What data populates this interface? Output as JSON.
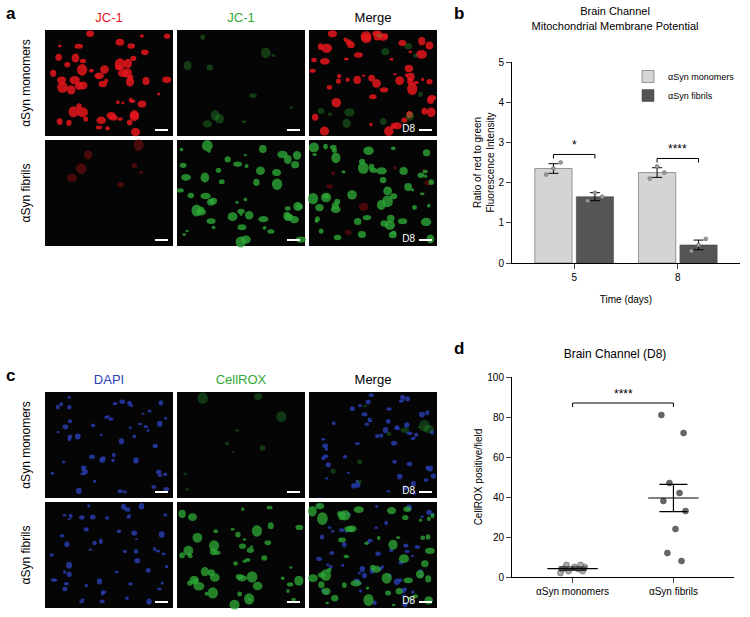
{
  "panels": [
    {
      "label": "a",
      "type": "image_grid",
      "columns": [
        {
          "text": "JC-1",
          "color": "#e4161c"
        },
        {
          "text": "JC-1",
          "color": "#2ea836"
        },
        {
          "text": "Merge",
          "color": "#000000"
        }
      ],
      "rows": [
        "αSyn monomers",
        "αSyn fibrils"
      ],
      "tag": "D8"
    },
    {
      "label": "c",
      "type": "image_grid",
      "columns": [
        {
          "text": "DAPI",
          "color": "#2a3fb8"
        },
        {
          "text": "CellROX",
          "color": "#2ea836"
        },
        {
          "text": "Merge",
          "color": "#000000"
        }
      ],
      "rows": [
        "αSyn monomers",
        "αSyn fibrils"
      ],
      "tag": "D8"
    }
  ],
  "chart_data": [
    {
      "label": "b",
      "type": "bar",
      "title": "Brain Channel\nMitochondrial Membrane Potential",
      "x_label": "Time (days)",
      "y_label": "Ratio of red to green\nFluorescence Intensity",
      "categories": [
        "5",
        "8"
      ],
      "series": [
        {
          "name": "αSyn monomers",
          "color": "#d4d4d4",
          "values": [
            2.35,
            2.25
          ],
          "errors": [
            0.12,
            0.12
          ],
          "points": [
            [
              2.2,
              2.35,
              2.5
            ],
            [
              2.1,
              2.4,
              2.25
            ]
          ]
        },
        {
          "name": "αSyn fibrils",
          "color": "#555555",
          "values": [
            1.65,
            0.45
          ],
          "errors": [
            0.1,
            0.12
          ],
          "points": [
            [
              1.55,
              1.75,
              1.65
            ],
            [
              0.3,
              0.45,
              0.6
            ]
          ]
        }
      ],
      "comparisons": [
        {
          "category": "5",
          "text": "*"
        },
        {
          "category": "8",
          "text": "****"
        }
      ],
      "ylim": [
        0,
        5
      ],
      "yticks": [
        0,
        1,
        2,
        3,
        4,
        5
      ],
      "grid": false,
      "legend": "top right"
    },
    {
      "label": "d",
      "type": "scatter",
      "title": "Brain Channel (D8)",
      "y_label": "CellROX positive/field",
      "categories": [
        "αSyn monomers",
        "αSyn fibrils"
      ],
      "series": [
        {
          "name": "αSyn monomers",
          "color": "#aaaaaa",
          "points": [
            2,
            3,
            3,
            4,
            4,
            5,
            5,
            6,
            6
          ],
          "mean": 4.2,
          "sem": 0.8
        },
        {
          "name": "αSyn fibrils",
          "color": "#666666",
          "points": [
            81,
            72,
            47,
            42,
            38,
            33,
            24,
            12,
            8
          ],
          "mean": 39.5,
          "sem": 6.8
        }
      ],
      "comparisons": [
        {
          "between": [
            "αSyn monomers",
            "αSyn fibrils"
          ],
          "text": "****"
        }
      ],
      "ylim": [
        0,
        100
      ],
      "yticks": [
        0,
        20,
        40,
        60,
        80,
        100
      ],
      "grid": false
    }
  ]
}
